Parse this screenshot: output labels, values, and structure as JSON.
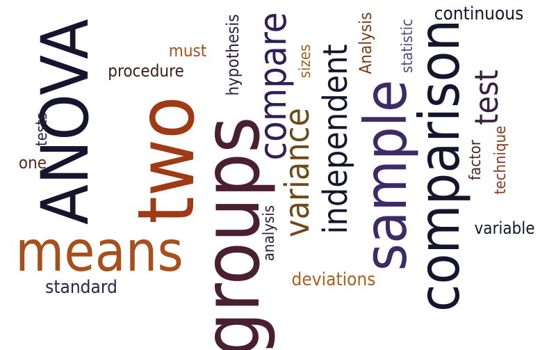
{
  "words": [
    {
      "key": "anova",
      "text": "ANOVA",
      "color": "#16142e",
      "orientation": "vertical"
    },
    {
      "key": "two",
      "text": "two",
      "color": "#a03a14",
      "orientation": "vertical"
    },
    {
      "key": "groups",
      "text": "groups",
      "color": "#4a2030",
      "orientation": "vertical"
    },
    {
      "key": "means",
      "text": "means",
      "color": "#a8501c",
      "orientation": "horizontal"
    },
    {
      "key": "sample",
      "text": "sample",
      "color": "#3e2a66",
      "orientation": "vertical"
    },
    {
      "key": "comparison",
      "text": "comparison",
      "color": "#16152e",
      "orientation": "vertical"
    },
    {
      "key": "compare",
      "text": "compare",
      "color": "#2e1f54",
      "orientation": "vertical"
    },
    {
      "key": "variance",
      "text": "variance",
      "color": "#6e4a18",
      "orientation": "vertical"
    },
    {
      "key": "independent",
      "text": "independent",
      "color": "#16152e",
      "orientation": "vertical"
    },
    {
      "key": "test",
      "text": "test",
      "color": "#3a1f40",
      "orientation": "vertical"
    },
    {
      "key": "hypothesis",
      "text": "hypothesis",
      "color": "#2a1e40",
      "orientation": "vertical"
    },
    {
      "key": "sizes",
      "text": "sizes",
      "color": "#a8601c",
      "orientation": "vertical"
    },
    {
      "key": "analysis_upper",
      "text": "Analysis",
      "color": "#7a3e1a",
      "orientation": "vertical"
    },
    {
      "key": "statistic",
      "text": "statistic",
      "color": "#5e4a7a",
      "orientation": "vertical"
    },
    {
      "key": "continuous",
      "text": "continuous",
      "color": "#16152e",
      "orientation": "horizontal"
    },
    {
      "key": "must",
      "text": "must",
      "color": "#a8501c",
      "orientation": "horizontal"
    },
    {
      "key": "procedure",
      "text": "procedure",
      "color": "#3a2218",
      "orientation": "horizontal"
    },
    {
      "key": "tests",
      "text": "tests",
      "color": "#2a1e40",
      "orientation": "vertical"
    },
    {
      "key": "one",
      "text": "one",
      "color": "#5a2a14",
      "orientation": "horizontal"
    },
    {
      "key": "analysis",
      "text": "analysis",
      "color": "#2a1e40",
      "orientation": "vertical"
    },
    {
      "key": "standard",
      "text": "standard",
      "color": "#2e1f54",
      "orientation": "horizontal"
    },
    {
      "key": "deviations",
      "text": "deviations",
      "color": "#a8601c",
      "orientation": "horizontal"
    },
    {
      "key": "factor",
      "text": "factor",
      "color": "#4a2a30",
      "orientation": "vertical"
    },
    {
      "key": "technique",
      "text": "technique",
      "color": "#8a3a1c",
      "orientation": "vertical"
    },
    {
      "key": "variable",
      "text": "variable",
      "color": "#16152e",
      "orientation": "horizontal"
    }
  ]
}
